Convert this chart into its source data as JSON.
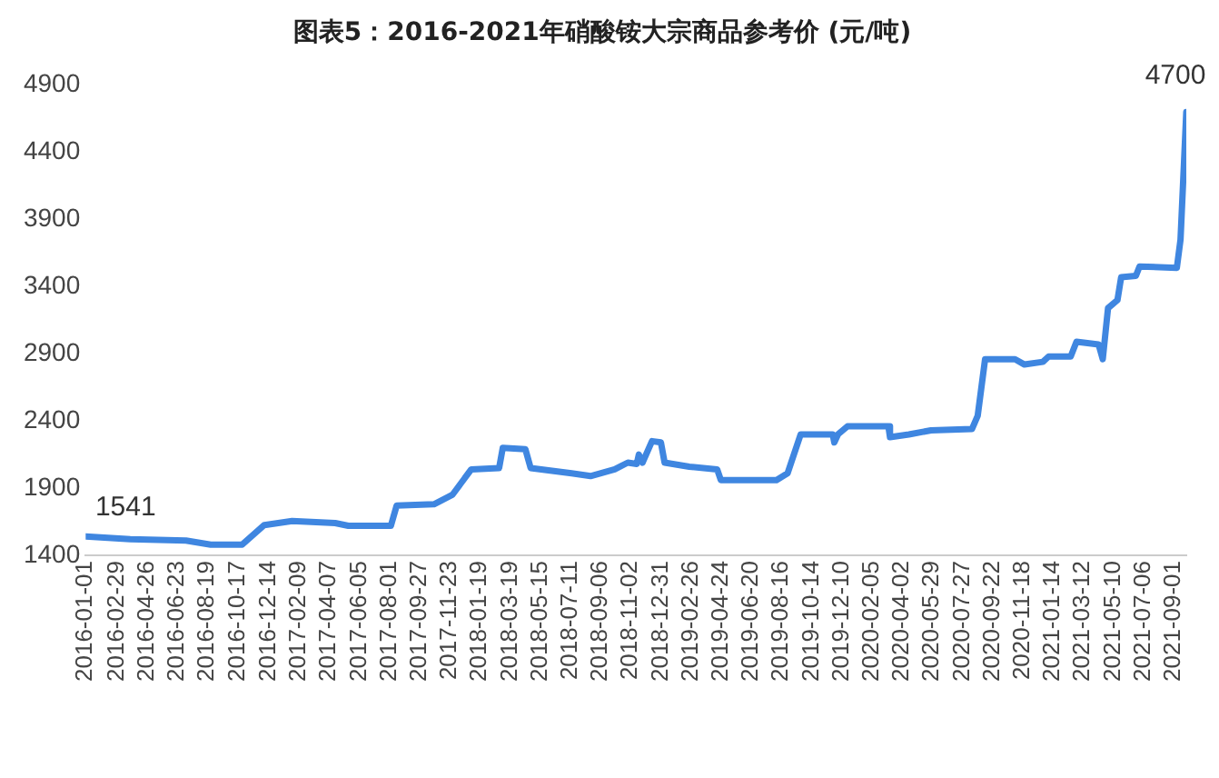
{
  "chart_data": {
    "type": "line",
    "title": "图表5：2016-2021年硝酸铵大宗商品参考价 (元/吨)",
    "x": [
      "2016-01-01",
      "2016-03-26",
      "2016-07-10",
      "2016-08-26",
      "2016-10-25",
      "2016-12-06",
      "2017-01-28",
      "2017-04-20",
      "2017-05-15",
      "2017-08-04",
      "2017-08-15",
      "2017-10-25",
      "2017-11-29",
      "2018-01-04",
      "2018-02-26",
      "2018-03-05",
      "2018-04-17",
      "2018-04-27",
      "2018-07-14",
      "2018-08-19",
      "2018-10-04",
      "2018-10-29",
      "2018-11-15",
      "2018-11-19",
      "2018-11-26",
      "2018-12-14",
      "2018-12-31",
      "2019-01-07",
      "2019-02-23",
      "2019-04-17",
      "2019-04-24",
      "2019-08-08",
      "2019-08-29",
      "2019-09-23",
      "2019-11-23",
      "2019-11-26",
      "2019-12-03",
      "2019-12-21",
      "2020-03-08",
      "2020-03-11",
      "2020-04-16",
      "2020-05-28",
      "2020-08-14",
      "2020-08-25",
      "2020-09-08",
      "2020-11-04",
      "2020-11-22",
      "2020-12-27",
      "2021-01-07",
      "2021-02-18",
      "2021-03-01",
      "2021-04-12",
      "2021-04-20",
      "2021-04-30",
      "2021-05-18",
      "2021-05-25",
      "2021-06-22",
      "2021-06-29",
      "2021-09-08",
      "2021-09-15",
      "2021-09-26"
    ],
    "series": [
      {
        "color": "#3f86e0",
        "values": [
          1541,
          1520,
          1510,
          1480,
          1480,
          1625,
          1655,
          1640,
          1620,
          1620,
          1770,
          1780,
          1850,
          2040,
          2050,
          2200,
          2190,
          2050,
          2010,
          1990,
          2040,
          2090,
          2080,
          2150,
          2090,
          2250,
          2240,
          2090,
          2060,
          2040,
          1960,
          1960,
          2010,
          2300,
          2300,
          2240,
          2300,
          2360,
          2360,
          2280,
          2300,
          2330,
          2340,
          2440,
          2860,
          2860,
          2820,
          2840,
          2880,
          2880,
          2990,
          2970,
          2860,
          3240,
          3300,
          3470,
          3480,
          3550,
          3540,
          3750,
          4700
        ],
        "value_labels": [
          "1541",
          null,
          null,
          null,
          null,
          null,
          null,
          null,
          null,
          null,
          null,
          null,
          null,
          null,
          null,
          null,
          null,
          null,
          null,
          null,
          null,
          null,
          null,
          null,
          null,
          null,
          null,
          null,
          null,
          null,
          null,
          null,
          null,
          null,
          null,
          null,
          null,
          null,
          null,
          null,
          null,
          null,
          null,
          null,
          null,
          null,
          null,
          null,
          null,
          null,
          null,
          null,
          null,
          null,
          null,
          null,
          null,
          null,
          null,
          null,
          "4700"
        ]
      }
    ],
    "xlim": [
      "2016-01-01",
      "2021-09-26"
    ],
    "xticks": [
      "2016-01-01",
      "2016-02-29",
      "2016-04-26",
      "2016-06-23",
      "2016-08-19",
      "2016-10-17",
      "2016-12-14",
      "2017-02-09",
      "2017-04-07",
      "2017-06-05",
      "2017-08-01",
      "2017-09-27",
      "2017-11-23",
      "2018-01-19",
      "2018-03-19",
      "2018-05-15",
      "2018-07-11",
      "2018-09-06",
      "2018-11-02",
      "2018-12-31",
      "2019-02-26",
      "2019-04-24",
      "2019-06-20",
      "2019-08-16",
      "2019-10-14",
      "2019-12-10",
      "2020-02-05",
      "2020-04-02",
      "2020-05-29",
      "2020-07-27",
      "2020-09-22",
      "2020-11-18",
      "2021-01-14",
      "2021-03-12",
      "2021-05-10",
      "2021-07-06",
      "2021-09-01"
    ],
    "ylim": [
      1400,
      4900
    ],
    "yticks": [
      1400,
      1900,
      2400,
      2900,
      3400,
      3900,
      4400,
      4900
    ],
    "grid": false,
    "legend": false,
    "marker": "none",
    "line_style": "solid"
  }
}
